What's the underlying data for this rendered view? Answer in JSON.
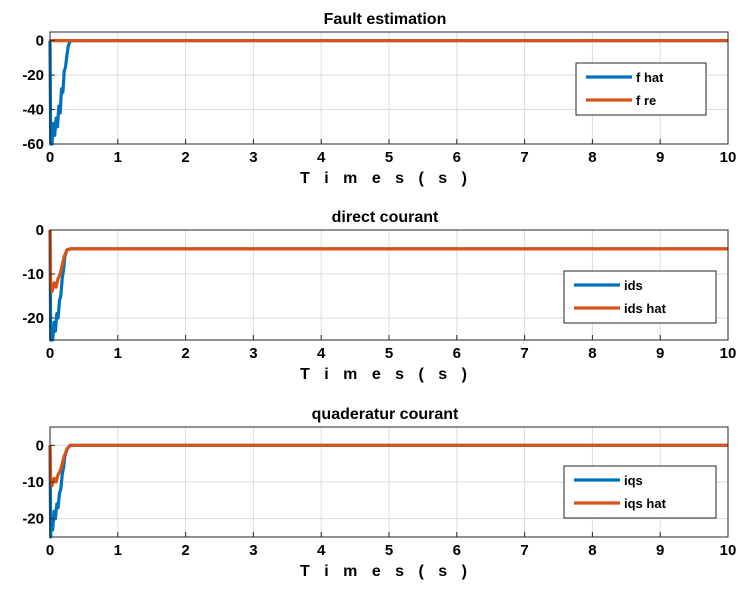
{
  "colors": {
    "series1": "#0072BD",
    "series2": "#D95319",
    "grid": "#dcdcdc",
    "axes": "#262626"
  },
  "chart_data": [
    {
      "type": "line",
      "title": "Fault estimation",
      "xlabel": "T i m e s ( s )",
      "ylabel": "",
      "xlim": [
        0,
        10
      ],
      "ylim": [
        -60,
        5
      ],
      "xticks": [
        0,
        1,
        2,
        3,
        4,
        5,
        6,
        7,
        8,
        9,
        10
      ],
      "yticks": [
        0,
        -20,
        -40,
        -60
      ],
      "grid": true,
      "legend_position": "right",
      "series": [
        {
          "name": "f hat",
          "color": "#0072BD",
          "x": [
            0,
            0.01,
            0.02,
            0.03,
            0.05,
            0.07,
            0.09,
            0.11,
            0.13,
            0.15,
            0.17,
            0.19,
            0.21,
            0.23,
            0.25,
            0.27,
            0.3,
            10
          ],
          "y": [
            0,
            -60,
            -52,
            -60,
            -48,
            -55,
            -45,
            -50,
            -38,
            -42,
            -28,
            -30,
            -18,
            -15,
            -8,
            -3,
            0,
            0
          ]
        },
        {
          "name": "f re",
          "color": "#D95319",
          "x": [
            0,
            10
          ],
          "y": [
            0,
            0
          ]
        }
      ]
    },
    {
      "type": "line",
      "title": "direct courant",
      "xlabel": "T i m e s ( s )",
      "ylabel": "",
      "xlim": [
        0,
        10
      ],
      "ylim": [
        -25,
        0
      ],
      "xticks": [
        0,
        1,
        2,
        3,
        4,
        5,
        6,
        7,
        8,
        9,
        10
      ],
      "yticks": [
        0,
        -10,
        -20
      ],
      "grid": true,
      "legend_position": "right",
      "series": [
        {
          "name": "ids",
          "color": "#0072BD",
          "x": [
            0,
            0.01,
            0.02,
            0.04,
            0.06,
            0.08,
            0.1,
            0.12,
            0.14,
            0.16,
            0.18,
            0.2,
            0.22,
            0.25,
            0.3,
            10
          ],
          "y": [
            0,
            -25,
            -22,
            -25,
            -21,
            -23,
            -19,
            -20,
            -16,
            -15,
            -11,
            -9,
            -6,
            -4.5,
            -4.3,
            -4.3
          ]
        },
        {
          "name": "ids hat",
          "color": "#D95319",
          "x": [
            0,
            0.01,
            0.03,
            0.06,
            0.09,
            0.12,
            0.15,
            0.18,
            0.21,
            0.25,
            0.3,
            10
          ],
          "y": [
            0,
            -13,
            -14,
            -12,
            -13,
            -11,
            -10,
            -8,
            -6,
            -4.5,
            -4.3,
            -4.3
          ]
        }
      ]
    },
    {
      "type": "line",
      "title": "quaderatur courant",
      "xlabel": "T i m e s ( s )",
      "ylabel": "",
      "xlim": [
        0,
        10
      ],
      "ylim": [
        -25,
        5
      ],
      "xticks": [
        0,
        1,
        2,
        3,
        4,
        5,
        6,
        7,
        8,
        9,
        10
      ],
      "yticks": [
        0,
        -10,
        -20
      ],
      "grid": true,
      "legend_position": "right",
      "series": [
        {
          "name": "iqs",
          "color": "#0072BD",
          "x": [
            0,
            0.01,
            0.02,
            0.04,
            0.06,
            0.08,
            0.1,
            0.12,
            0.14,
            0.16,
            0.18,
            0.2,
            0.22,
            0.25,
            0.3,
            10
          ],
          "y": [
            0,
            -25,
            -20,
            -23,
            -18,
            -20,
            -16,
            -17,
            -13,
            -12,
            -8,
            -6,
            -3,
            -1,
            0,
            0
          ]
        },
        {
          "name": "iqs hat",
          "color": "#D95319",
          "x": [
            0,
            0.01,
            0.03,
            0.06,
            0.09,
            0.12,
            0.15,
            0.18,
            0.21,
            0.25,
            0.3,
            10
          ],
          "y": [
            0,
            -10,
            -11,
            -9,
            -10,
            -8,
            -7,
            -5,
            -3,
            -1,
            0,
            0
          ]
        }
      ]
    }
  ]
}
